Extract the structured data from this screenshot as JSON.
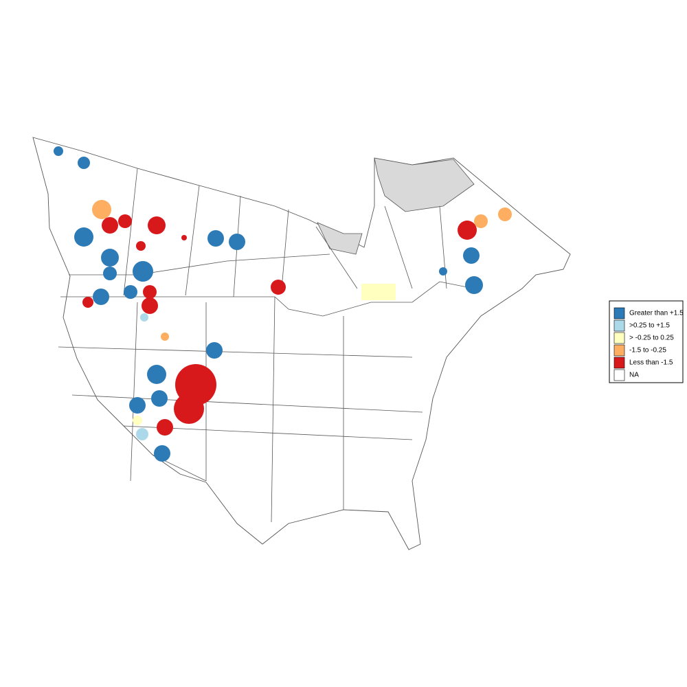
{
  "legend": {
    "items": [
      {
        "label": "Greater than +1.5",
        "color": "#2c7bb6"
      },
      {
        "label": ">0.25 to +1.5",
        "color": "#abd9e9"
      },
      {
        "label": "> -0.25 to 0.25",
        "color": "#ffffbf"
      },
      {
        "label": "-1.5 to -0.25",
        "color": "#fdae61"
      },
      {
        "label": "Less than -1.5",
        "color": "#d7191c"
      },
      {
        "label": "NA",
        "color": "#ffffff"
      }
    ]
  }
}
